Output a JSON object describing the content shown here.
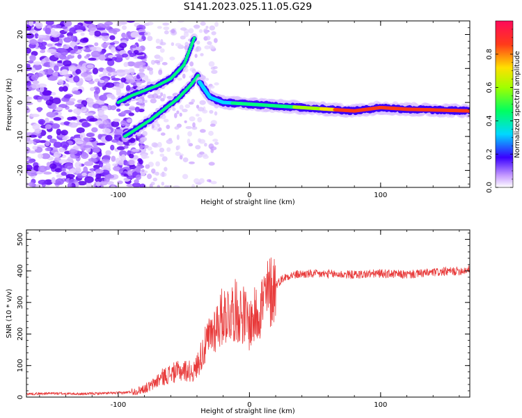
{
  "title": "S141.2023.025.11.05.G29",
  "colors": {
    "snr_line": "#e83a3a",
    "axis": "#000000",
    "spectrum_low": "#a05cff",
    "spectrum_mid": "#00e8ff",
    "spectrum_high": "#ff2a2a"
  },
  "chart_data": [
    {
      "type": "heatmap",
      "title": "",
      "xlabel": "Height of straight line (km)",
      "ylabel": "Frequency (Hz)",
      "xlim": [
        -170,
        168
      ],
      "ylim": [
        -25,
        24
      ],
      "xticks": [
        -100,
        0,
        100
      ],
      "yticks": [
        -20,
        -10,
        0,
        10,
        20
      ],
      "grid": false,
      "ridges": [
        {
          "x": [
            -100,
            -90,
            -80,
            -70,
            -60,
            -50,
            -42
          ],
          "y": [
            0,
            2,
            3.5,
            5,
            7,
            11,
            19
          ]
        },
        {
          "x": [
            -95,
            -85,
            -75,
            -65,
            -55,
            -45,
            -39
          ],
          "y": [
            -10,
            -7.5,
            -5,
            -2,
            1,
            5,
            8
          ]
        },
        {
          "x": [
            -38,
            -30,
            -20,
            0,
            20,
            40,
            60,
            80,
            100,
            120,
            140,
            168
          ],
          "y": [
            6,
            1.5,
            0,
            -0.5,
            -1,
            -1.5,
            -2,
            -2.5,
            -1.5,
            -2,
            -2.2,
            -2.5
          ]
        }
      ],
      "colorbar": {
        "label": "Normalized spectral amplitude",
        "range": [
          0,
          1
        ],
        "ticks": [
          "0.0",
          "0.2",
          "0.4",
          "0.6",
          "0.8"
        ]
      }
    },
    {
      "type": "line",
      "title": "",
      "xlabel": "Height of straight line (km)",
      "ylabel": "SNR (10 * v/v)",
      "xlim": [
        -170,
        168
      ],
      "ylim": [
        0,
        530
      ],
      "xticks": [
        -100,
        0,
        100
      ],
      "yticks": [
        0,
        100,
        200,
        300,
        400,
        500
      ],
      "grid": false,
      "series": [
        {
          "x": [
            -170,
            -150,
            -130,
            -110,
            -95,
            -85,
            -75,
            -68,
            -60,
            -50,
            -42,
            -35,
            -28,
            -20,
            -12,
            -5,
            0,
            5,
            10,
            15,
            20,
            25,
            30,
            40,
            60,
            80,
            100,
            120,
            140,
            160,
            168
          ],
          "y": [
            10,
            12,
            10,
            12,
            14,
            20,
            35,
            60,
            75,
            85,
            80,
            150,
            210,
            260,
            275,
            265,
            230,
            260,
            300,
            330,
            355,
            375,
            385,
            390,
            390,
            388,
            392,
            388,
            395,
            400,
            405
          ]
        }
      ]
    }
  ]
}
